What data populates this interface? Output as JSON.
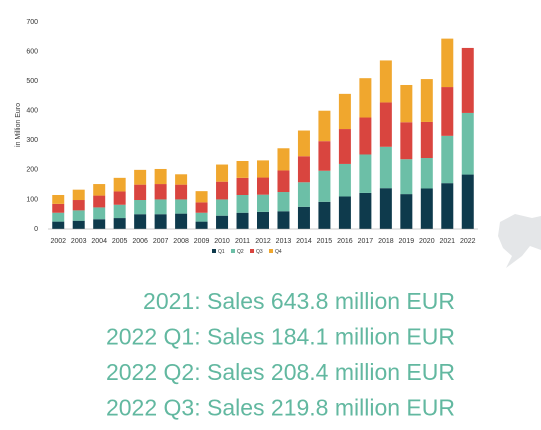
{
  "chart_data": {
    "type": "stacked_bar",
    "y_label": "in Million Euro",
    "categories": [
      "2002",
      "2003",
      "2004",
      "2005",
      "2006",
      "2007",
      "2008",
      "2009",
      "2010",
      "2011",
      "2012",
      "2013",
      "2014",
      "2015",
      "2016",
      "2017",
      "2018",
      "2019",
      "2020",
      "2021",
      "2022"
    ],
    "series": [
      {
        "name": "Q1",
        "color": "#0e3a4c",
        "values": [
          25,
          28,
          33,
          37,
          50,
          50,
          52,
          25,
          45,
          55,
          58,
          60,
          75,
          92,
          110,
          122,
          138,
          118,
          137,
          155,
          184.1
        ]
      },
      {
        "name": "Q2",
        "color": "#6cbfa7",
        "values": [
          30,
          35,
          40,
          45,
          48,
          50,
          48,
          30,
          55,
          60,
          58,
          65,
          83,
          105,
          110,
          130,
          140,
          118,
          103,
          160,
          208.4
        ]
      },
      {
        "name": "Q3",
        "color": "#d9453f",
        "values": [
          30,
          35,
          40,
          45,
          52,
          52,
          50,
          35,
          60,
          58,
          58,
          73,
          88,
          100,
          118,
          125,
          150,
          125,
          122,
          165,
          219.8
        ]
      },
      {
        "name": "Q4",
        "color": "#f0a72e",
        "values": [
          30,
          35,
          39,
          46,
          50,
          51,
          35,
          38,
          58,
          57,
          58,
          75,
          87,
          103,
          119,
          133,
          142,
          126,
          145,
          163.8,
          null
        ]
      }
    ],
    "ylim": [
      0,
      700
    ],
    "yticks": [
      0,
      100,
      200,
      300,
      400,
      500,
      600,
      700
    ],
    "annotations": [
      "2021: Sales 643.8 million EUR",
      "2022 Q1: Sales 184.1 million EUR",
      "2022 Q2: Sales 208.4 million EUR",
      "2022 Q3: Sales 219.8 million EUR"
    ]
  }
}
